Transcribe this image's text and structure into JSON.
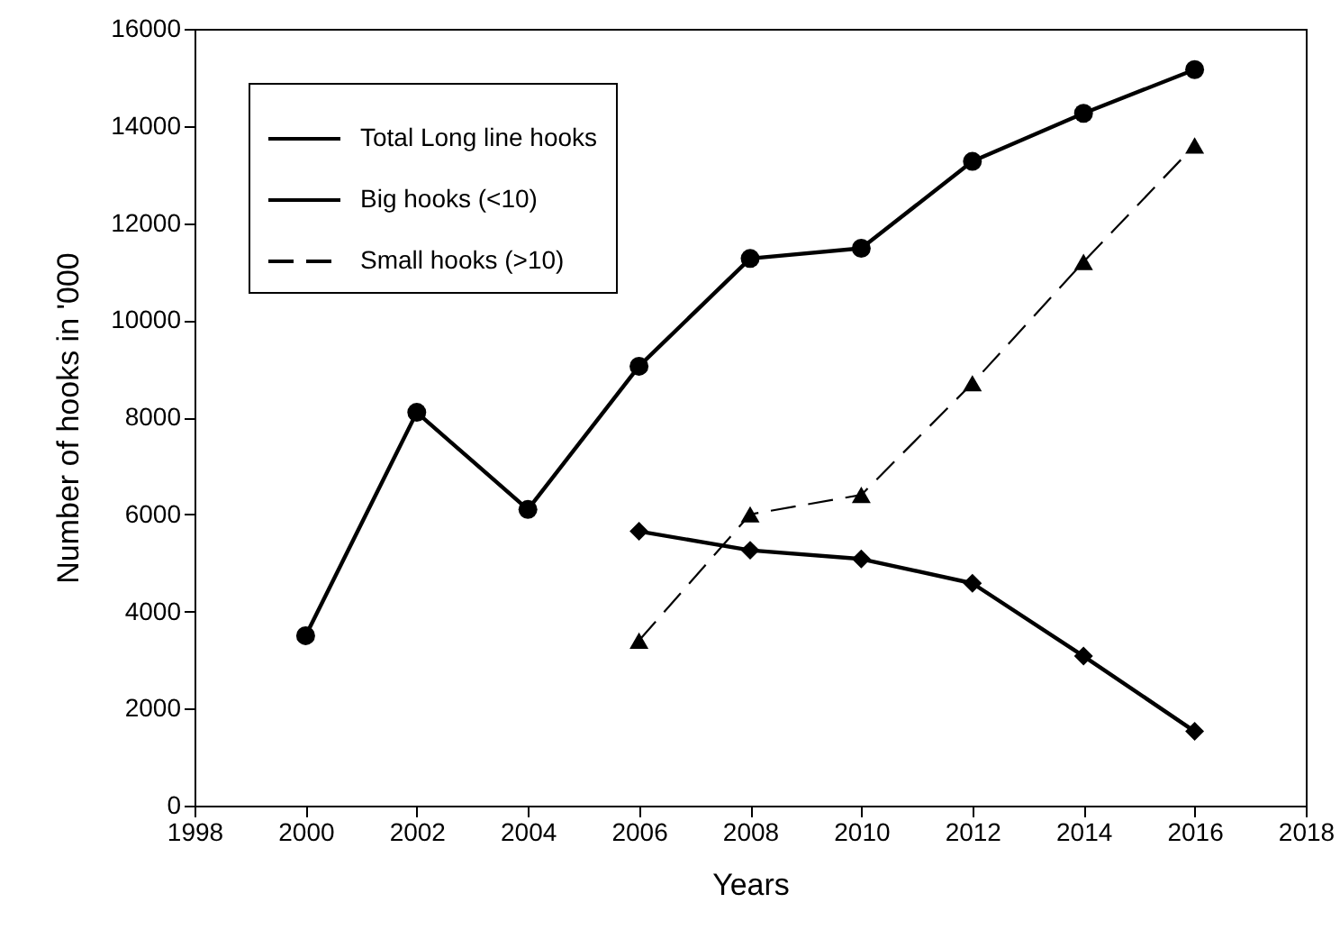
{
  "chart_data": {
    "type": "line",
    "xlabel": "Years",
    "ylabel": "Number of hooks in '000",
    "x": [
      2000,
      2002,
      2004,
      2006,
      2008,
      2010,
      2012,
      2014,
      2016
    ],
    "series": [
      {
        "name": "Total Long line hooks",
        "color": "#000000",
        "marker": "circle",
        "line_style": "solid",
        "values": [
          3500,
          8100,
          6100,
          9050,
          11270,
          11480,
          13270,
          14260,
          15160
        ]
      },
      {
        "name": "Big hooks (<10)",
        "color": "#000000",
        "marker": "diamond",
        "line_style": "solid",
        "values": [
          null,
          null,
          null,
          5650,
          5260,
          5080,
          4580,
          3080,
          1530
        ]
      },
      {
        "name": "Small hooks (>10)",
        "color": "#000000",
        "marker": "triangle",
        "line_style": "dashed",
        "values": [
          null,
          null,
          null,
          3400,
          6000,
          6400,
          8700,
          11200,
          13600
        ]
      }
    ],
    "xlim": [
      1998,
      2018
    ],
    "xticks": [
      1998,
      2000,
      2002,
      2004,
      2006,
      2008,
      2010,
      2012,
      2014,
      2016,
      2018
    ],
    "ylim": [
      0,
      16000
    ],
    "yticks": [
      0,
      2000,
      4000,
      6000,
      8000,
      10000,
      12000,
      14000,
      16000
    ],
    "grid": false,
    "legend": "top left"
  }
}
